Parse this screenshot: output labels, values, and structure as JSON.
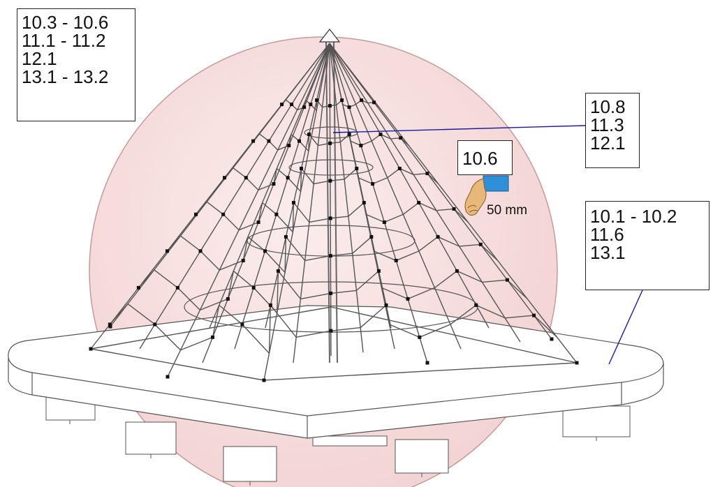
{
  "callouts": {
    "top_left": [
      "10.3 - 10.6",
      "11.1 - 11.2",
      "12.1",
      "13.1 - 13.2"
    ],
    "top_right": [
      "10.8",
      "11.3",
      "12.1"
    ],
    "hand_label": "10.6",
    "right": [
      "10.1 - 10.2",
      "11.6",
      "13.1"
    ]
  },
  "measurement": "50 mm",
  "colors": {
    "sphere_fill": "#f6d8d8",
    "sphere_stroke": "#b98a8a",
    "leader_line": "#1a1aa0",
    "sleeve": "#2f8fd8",
    "skin": "#e8b87a",
    "rope": "#555555",
    "connector": "#111111"
  },
  "icons": {
    "hand": "hand-pointing-icon"
  }
}
